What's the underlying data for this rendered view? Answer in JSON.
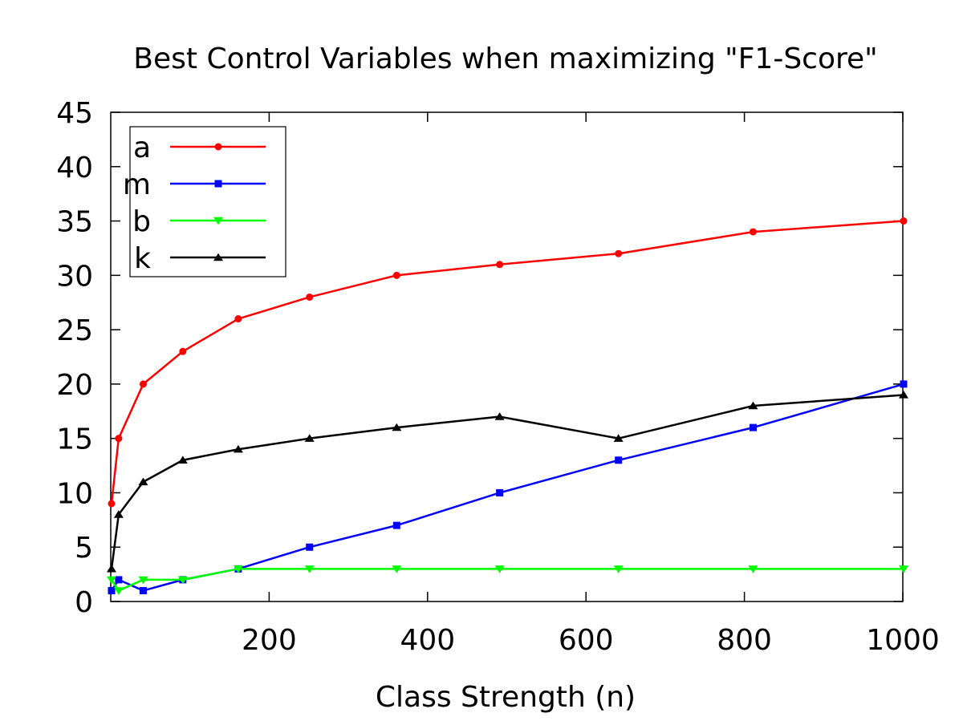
{
  "chart_data": {
    "type": "line",
    "title": "Best Control Variables when maximizing \"F1-Score\"",
    "xlabel": "Class Strength (n)",
    "ylabel": "",
    "xlim": [
      0,
      1000
    ],
    "ylim": [
      0,
      45
    ],
    "xticks": [
      200,
      400,
      600,
      800,
      1000
    ],
    "yticks": [
      0,
      5,
      10,
      15,
      20,
      25,
      30,
      35,
      40,
      45
    ],
    "grid": false,
    "legend_position": "top-left",
    "x": [
      1,
      10,
      41,
      91,
      161,
      251,
      361,
      491,
      641,
      811,
      1001
    ],
    "series": [
      {
        "name": "a",
        "color": "#ff0000",
        "marker": "circle",
        "values": [
          9,
          15,
          20,
          23,
          26,
          28,
          30,
          31,
          32,
          34,
          35
        ]
      },
      {
        "name": "m",
        "color": "#0000ff",
        "marker": "square",
        "values": [
          1,
          2,
          1,
          2,
          3,
          5,
          7,
          10,
          13,
          16,
          20
        ]
      },
      {
        "name": "b",
        "color": "#00ff00",
        "marker": "triangle-down",
        "values": [
          2,
          1,
          2,
          2,
          3,
          3,
          3,
          3,
          3,
          3,
          3
        ]
      },
      {
        "name": "k",
        "color": "#000000",
        "marker": "triangle-up",
        "values": [
          3,
          8,
          11,
          13,
          14,
          15,
          16,
          17,
          15,
          18,
          19
        ]
      }
    ]
  }
}
